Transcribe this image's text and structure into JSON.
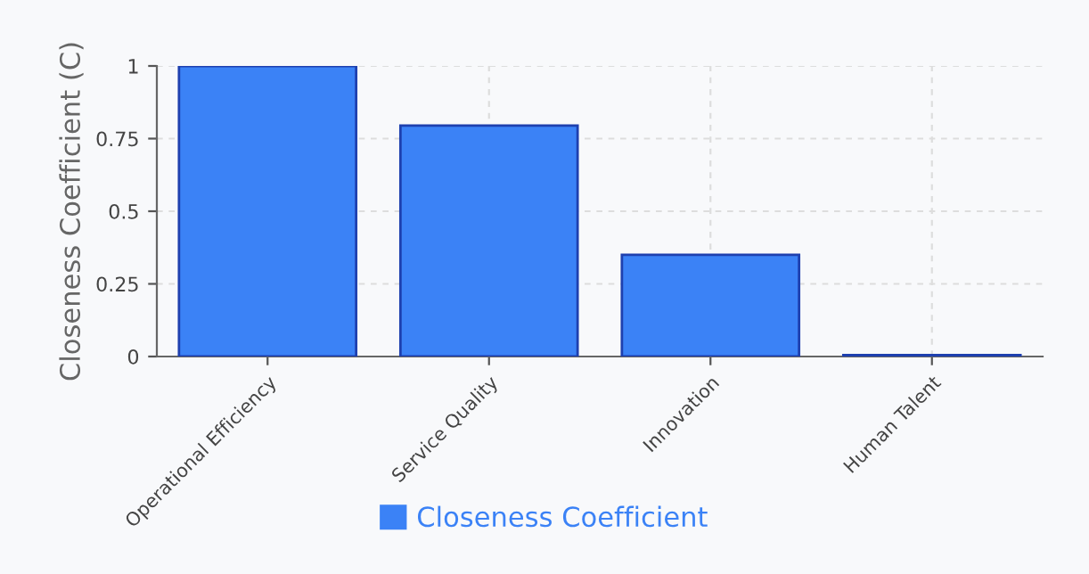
{
  "chart_data": {
    "type": "bar",
    "ylabel": "Closeness Coefficient (C)",
    "categories": [
      "Operational Efficiency",
      "Service Quality",
      "Innovation",
      "Human Talent"
    ],
    "series": [
      {
        "name": "Closeness Coefficient",
        "color": "#3b82f6",
        "values": [
          1,
          0.795,
          0.35,
          0.005
        ]
      }
    ],
    "ylim": [
      0,
      1
    ],
    "yticks": [
      0,
      0.25,
      0.5,
      0.75,
      1
    ],
    "grid": true,
    "legend": "bottom"
  }
}
